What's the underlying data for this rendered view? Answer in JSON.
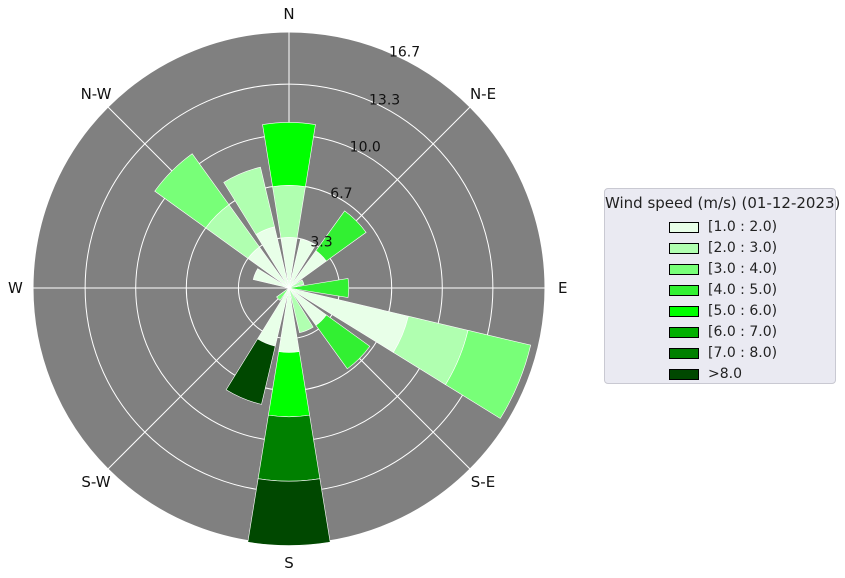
{
  "chart_data": {
    "type": "windrose",
    "directions": [
      "N",
      "N-E",
      "E",
      "S-E",
      "S",
      "S-W",
      "W",
      "N-W"
    ],
    "radial_ticks": [
      "3.3",
      "6.7",
      "10.0",
      "13.3",
      "16.7"
    ],
    "radial_max": 16.7,
    "background_color": "#808080",
    "legend": {
      "title": "Wind speed (m/s) (01-12-2023)",
      "placement": "right",
      "bins": [
        {
          "label": "[1.0 : 2.0)",
          "color": "#e8ffe8"
        },
        {
          "label": "[2.0 : 3.0)",
          "color": "#b0ffb0"
        },
        {
          "label": "[3.0 : 4.0)",
          "color": "#78ff78"
        },
        {
          "label": "[4.0 : 5.0)",
          "color": "#32f032"
        },
        {
          "label": "[5.0 : 6.0)",
          "color": "#00ff00"
        },
        {
          "label": "[6.0 : 7.0)",
          "color": "#00b000"
        },
        {
          "label": "[7.0 : 8.0)",
          "color": "#008000"
        },
        {
          "label": ">8.0",
          "color": "#004800"
        }
      ]
    },
    "sectors": [
      {
        "direction_deg": 0,
        "segments": [
          {
            "bin": 0,
            "from": 0,
            "to": 3.3
          },
          {
            "bin": 1,
            "from": 3.3,
            "to": 6.7
          },
          {
            "bin": 4,
            "from": 6.7,
            "to": 10.8
          }
        ]
      },
      {
        "direction_deg": 22.5,
        "segments": [
          {
            "bin": 0,
            "from": 0,
            "to": 3.3
          }
        ]
      },
      {
        "direction_deg": 45,
        "segments": [
          {
            "bin": 0,
            "from": 0,
            "to": 3.0
          },
          {
            "bin": 3,
            "from": 3.0,
            "to": 6.2
          }
        ]
      },
      {
        "direction_deg": 67.5,
        "segments": [
          {
            "bin": 1,
            "from": 0,
            "to": 1.0
          }
        ]
      },
      {
        "direction_deg": 90,
        "segments": [
          {
            "bin": 3,
            "from": 0,
            "to": 3.9
          }
        ]
      },
      {
        "direction_deg": 112.5,
        "segments": [
          {
            "bin": 0,
            "from": 0,
            "to": 8.0
          },
          {
            "bin": 1,
            "from": 8.0,
            "to": 12.0
          },
          {
            "bin": 2,
            "from": 12.0,
            "to": 16.2
          }
        ]
      },
      {
        "direction_deg": 135,
        "segments": [
          {
            "bin": 0,
            "from": 0,
            "to": 3.0
          },
          {
            "bin": 3,
            "from": 3.0,
            "to": 6.5
          }
        ]
      },
      {
        "direction_deg": 157.5,
        "segments": [
          {
            "bin": 1,
            "from": 0,
            "to": 3.0
          }
        ]
      },
      {
        "direction_deg": 180,
        "segments": [
          {
            "bin": 0,
            "from": 0,
            "to": 4.2
          },
          {
            "bin": 4,
            "from": 4.2,
            "to": 8.4
          },
          {
            "bin": 5,
            "from": 8.4,
            "to": 8.4
          },
          {
            "bin": 6,
            "from": 8.4,
            "to": 12.6
          },
          {
            "bin": 7,
            "from": 12.6,
            "to": 16.8
          }
        ]
      },
      {
        "direction_deg": 202.5,
        "segments": [
          {
            "bin": 0,
            "from": 0,
            "to": 3.9
          },
          {
            "bin": 7,
            "from": 3.9,
            "to": 7.8
          }
        ]
      },
      {
        "direction_deg": 225,
        "segments": [
          {
            "bin": 2,
            "from": 0,
            "to": 1.0
          }
        ]
      },
      {
        "direction_deg": 292.5,
        "segments": [
          {
            "bin": 0,
            "from": 0,
            "to": 2.4
          }
        ]
      },
      {
        "direction_deg": 315,
        "segments": [
          {
            "bin": 0,
            "from": 0,
            "to": 3.3
          },
          {
            "bin": 1,
            "from": 3.3,
            "to": 6.7
          },
          {
            "bin": 2,
            "from": 6.7,
            "to": 10.8
          }
        ]
      },
      {
        "direction_deg": 337.5,
        "segments": [
          {
            "bin": 0,
            "from": 0,
            "to": 4.1
          },
          {
            "bin": 1,
            "from": 4.1,
            "to": 8.1
          }
        ]
      }
    ]
  }
}
